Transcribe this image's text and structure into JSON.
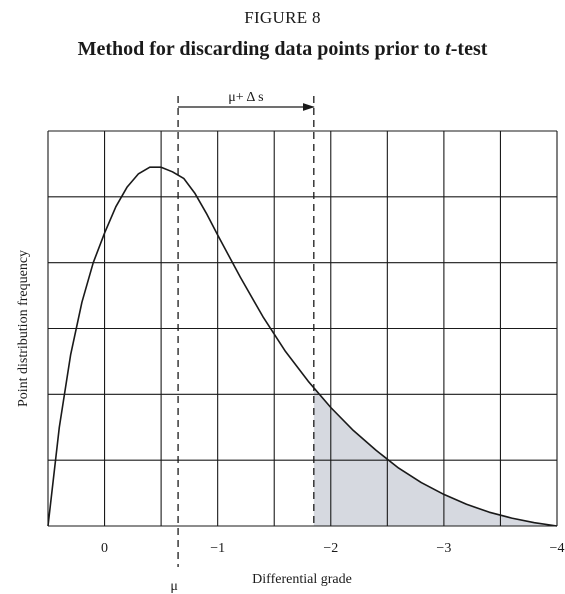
{
  "figure": {
    "label": "FIGURE 8",
    "title_main": "Method for discarding data points prior to ",
    "title_var": "t",
    "title_tail": "-test"
  },
  "chart_data": {
    "type": "area",
    "title": "Method for discarding data points prior to t-test",
    "xlabel": "Differential grade",
    "ylabel": "Point distribution frequency",
    "x_reversed": true,
    "xlim": [
      0.5,
      -4
    ],
    "ylim": [
      0,
      6
    ],
    "grid": true,
    "xticks": [
      0,
      -1,
      -2,
      -3,
      -4
    ],
    "xtick_labels": [
      "0",
      "−1",
      "−2",
      "−3",
      "−4"
    ],
    "curve": {
      "x": [
        0.5,
        0.4,
        0.3,
        0.2,
        0.1,
        0.0,
        -0.1,
        -0.2,
        -0.3,
        -0.4,
        -0.5,
        -0.6,
        -0.7,
        -0.8,
        -0.9,
        -1.0,
        -1.2,
        -1.4,
        -1.6,
        -1.8,
        -2.0,
        -2.2,
        -2.4,
        -2.6,
        -2.8,
        -3.0,
        -3.2,
        -3.4,
        -3.6,
        -3.8,
        -4.0
      ],
      "y": [
        0.0,
        1.5,
        2.6,
        3.4,
        4.0,
        4.45,
        4.85,
        5.15,
        5.35,
        5.45,
        5.45,
        5.38,
        5.28,
        5.05,
        4.75,
        4.42,
        3.78,
        3.18,
        2.65,
        2.2,
        1.8,
        1.45,
        1.15,
        0.88,
        0.66,
        0.48,
        0.33,
        0.21,
        0.12,
        0.05,
        0.0
      ]
    },
    "mean_line": {
      "x": -0.65,
      "label": "μ"
    },
    "cutoff_line": {
      "x": -1.85
    },
    "arrow_label": "μ+ Δ s",
    "shaded_region": {
      "from": -1.85,
      "to": -4.0,
      "color": "#d6d9e0"
    }
  }
}
